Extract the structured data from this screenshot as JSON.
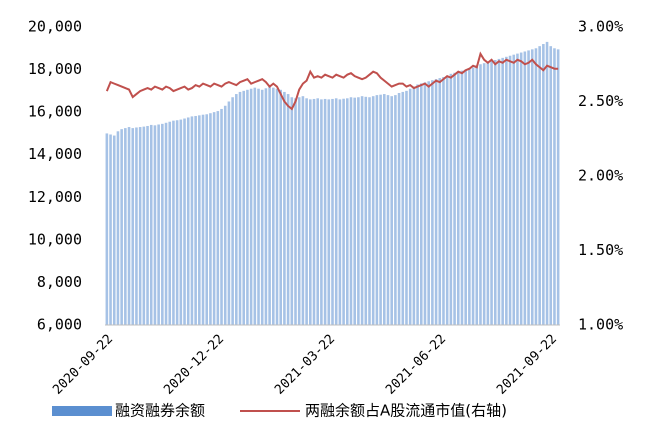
{
  "chart_data": {
    "type": "bar",
    "categories": [
      "2020-09-22",
      null,
      null,
      null,
      null,
      null,
      null,
      null,
      null,
      null,
      null,
      null,
      null,
      null,
      null,
      null,
      null,
      null,
      null,
      null,
      null,
      null,
      null,
      null,
      null,
      null,
      null,
      null,
      null,
      null,
      "2020-12-22",
      null,
      null,
      null,
      null,
      null,
      null,
      null,
      null,
      null,
      null,
      null,
      null,
      null,
      null,
      null,
      null,
      null,
      null,
      null,
      null,
      null,
      null,
      null,
      null,
      null,
      null,
      null,
      null,
      null,
      "2021-03-22",
      null,
      null,
      null,
      null,
      null,
      null,
      null,
      null,
      null,
      null,
      null,
      null,
      null,
      null,
      null,
      null,
      null,
      null,
      null,
      null,
      null,
      null,
      null,
      null,
      null,
      null,
      null,
      null,
      null,
      "2021-06-22",
      null,
      null,
      null,
      null,
      null,
      null,
      null,
      null,
      null,
      null,
      null,
      null,
      null,
      null,
      null,
      null,
      null,
      null,
      null,
      null,
      null,
      null,
      null,
      null,
      null,
      null,
      null,
      null,
      null,
      "2021-09-22",
      null,
      null
    ],
    "series": [
      {
        "name": "融资融券余额",
        "color": "#a6c2e6",
        "legend_color": "#5b8fd0",
        "values": [
          15000,
          14950,
          14900,
          15100,
          15200,
          15250,
          15300,
          15250,
          15280,
          15300,
          15320,
          15350,
          15400,
          15380,
          15420,
          15450,
          15500,
          15550,
          15600,
          15620,
          15650,
          15700,
          15750,
          15800,
          15820,
          15850,
          15880,
          15900,
          15950,
          16000,
          16050,
          16150,
          16300,
          16500,
          16700,
          16850,
          16950,
          17000,
          17050,
          17100,
          17150,
          17100,
          17050,
          17120,
          17200,
          17150,
          17100,
          17050,
          16950,
          16850,
          16700,
          16650,
          16700,
          16750,
          16650,
          16600,
          16620,
          16650,
          16600,
          16620,
          16600,
          16620,
          16650,
          16600,
          16630,
          16650,
          16700,
          16680,
          16700,
          16750,
          16720,
          16700,
          16750,
          16800,
          16820,
          16850,
          16800,
          16750,
          16800,
          16900,
          16950,
          17000,
          17100,
          17200,
          17300,
          17350,
          17400,
          17450,
          17500,
          17550,
          17600,
          17650,
          17700,
          17800,
          17850,
          17900,
          17950,
          18000,
          18050,
          18100,
          18200,
          18250,
          18300,
          18350,
          18400,
          18450,
          18500,
          18550,
          18600,
          18650,
          18700,
          18750,
          18800,
          18850,
          18900,
          18950,
          19000,
          19100,
          19200,
          19300,
          19100,
          19000,
          18950
        ]
      },
      {
        "name": "两融余额占A股流通市值(右轴)",
        "color": "#c0504d",
        "axis": "y2",
        "type": "line",
        "values": [
          2.57,
          2.63,
          2.62,
          2.61,
          2.6,
          2.59,
          2.58,
          2.53,
          2.55,
          2.57,
          2.58,
          2.59,
          2.58,
          2.6,
          2.59,
          2.58,
          2.6,
          2.59,
          2.57,
          2.58,
          2.59,
          2.6,
          2.58,
          2.59,
          2.61,
          2.6,
          2.62,
          2.61,
          2.6,
          2.62,
          2.61,
          2.6,
          2.62,
          2.63,
          2.62,
          2.61,
          2.63,
          2.64,
          2.65,
          2.62,
          2.63,
          2.64,
          2.65,
          2.63,
          2.6,
          2.62,
          2.6,
          2.55,
          2.5,
          2.47,
          2.45,
          2.5,
          2.58,
          2.62,
          2.64,
          2.7,
          2.66,
          2.67,
          2.66,
          2.68,
          2.67,
          2.66,
          2.68,
          2.67,
          2.66,
          2.68,
          2.69,
          2.67,
          2.66,
          2.65,
          2.66,
          2.68,
          2.7,
          2.69,
          2.66,
          2.64,
          2.62,
          2.6,
          2.61,
          2.62,
          2.62,
          2.6,
          2.61,
          2.59,
          2.6,
          2.61,
          2.62,
          2.6,
          2.62,
          2.64,
          2.63,
          2.65,
          2.67,
          2.66,
          2.68,
          2.7,
          2.69,
          2.71,
          2.72,
          2.74,
          2.73,
          2.82,
          2.78,
          2.76,
          2.78,
          2.75,
          2.77,
          2.76,
          2.78,
          2.77,
          2.76,
          2.78,
          2.77,
          2.75,
          2.76,
          2.78,
          2.75,
          2.73,
          2.71,
          2.74,
          2.73,
          2.72,
          2.72
        ]
      }
    ],
    "ylim": [
      6000,
      20000
    ],
    "yticks": [
      {
        "value": 6000,
        "label": "6,000"
      },
      {
        "value": 8000,
        "label": "8,000"
      },
      {
        "value": 10000,
        "label": "10,000"
      },
      {
        "value": 12000,
        "label": "12,000"
      },
      {
        "value": 14000,
        "label": "14,000"
      },
      {
        "value": 16000,
        "label": "16,000"
      },
      {
        "value": 18000,
        "label": "18,000"
      },
      {
        "value": 20000,
        "label": "20,000"
      }
    ],
    "y2lim": [
      1,
      3
    ],
    "y2ticks": [
      {
        "value": 1,
        "label": "1.00%"
      },
      {
        "value": 1.5,
        "label": "1.50%"
      },
      {
        "value": 2,
        "label": "2.00%"
      },
      {
        "value": 2.5,
        "label": "2.50%"
      },
      {
        "value": 3,
        "label": "3.00%"
      }
    ],
    "legend": "bottom"
  }
}
